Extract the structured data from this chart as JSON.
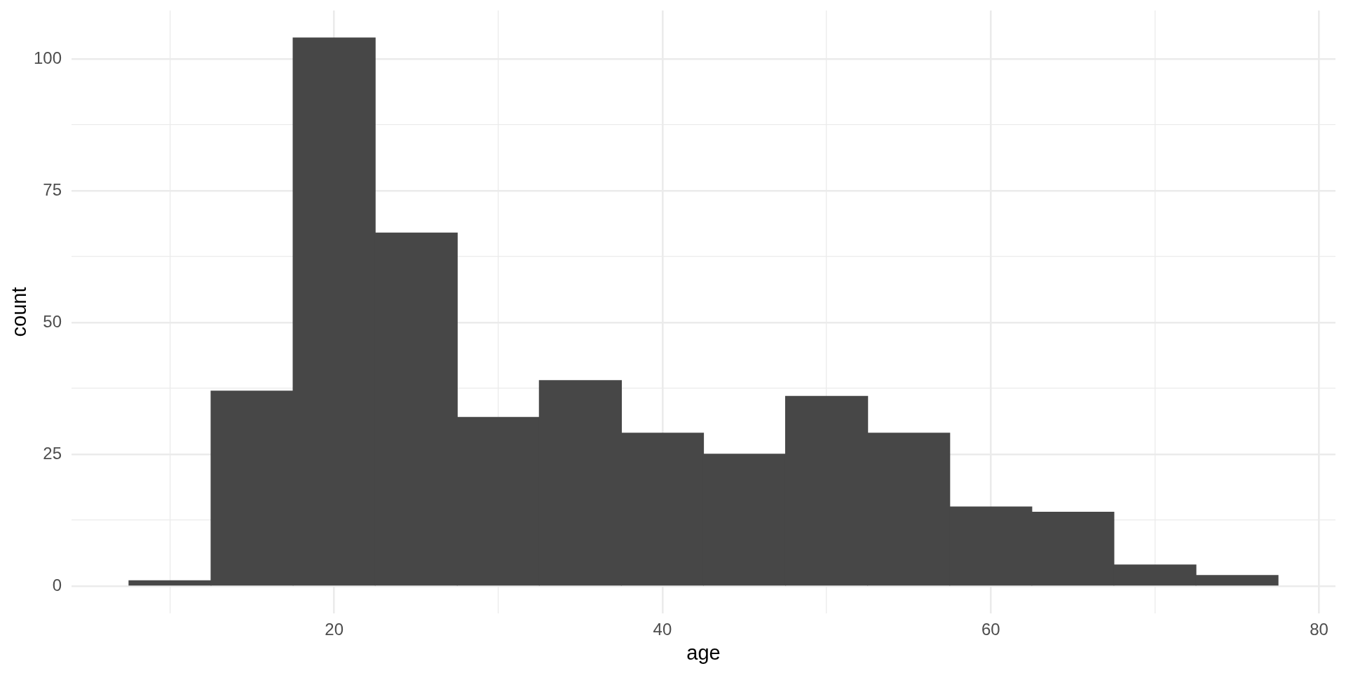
{
  "chart_data": {
    "type": "histogram",
    "xlabel": "age",
    "ylabel": "count",
    "bins": [
      7.5,
      12.5,
      17.5,
      22.5,
      27.5,
      32.5,
      37.5,
      42.5,
      47.5,
      52.5,
      57.5,
      62.5,
      67.5,
      72.5,
      77.5
    ],
    "values": [
      1,
      37,
      104,
      67,
      32,
      39,
      29,
      25,
      36,
      29,
      15,
      14,
      4,
      2
    ],
    "color": "#474747",
    "xlim": [
      4,
      81
    ],
    "ylim": [
      -5.2,
      109.2
    ],
    "xticks": [
      {
        "value": 10,
        "label": null
      },
      20,
      {
        "value": 30,
        "label": null
      },
      40,
      {
        "value": 50,
        "label": null
      },
      60,
      {
        "value": 70,
        "label": null
      },
      80
    ],
    "yticks": [
      0,
      {
        "value": 12.5,
        "label": null
      },
      25,
      {
        "value": 37.5,
        "label": null
      },
      50,
      {
        "value": 62.5,
        "label": null
      },
      75,
      {
        "value": 87.5,
        "label": null
      },
      100
    ],
    "grid": true
  }
}
